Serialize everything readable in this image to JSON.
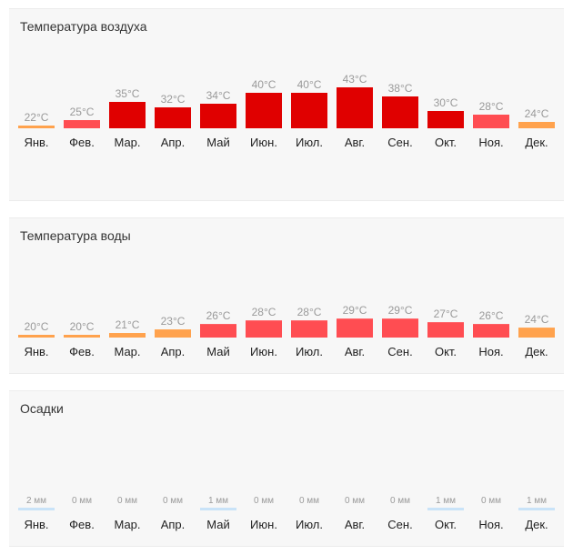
{
  "months": [
    "Янв.",
    "Фев.",
    "Мар.",
    "Апр.",
    "Май",
    "Июн.",
    "Июл.",
    "Авг.",
    "Сен.",
    "Окт.",
    "Ноя.",
    "Дек."
  ],
  "colors": {
    "orange": "#ffa24d",
    "red": "#ff4d52",
    "darkred": "#e00000",
    "precip": "#c9e3f8"
  },
  "chart_data": [
    {
      "type": "bar",
      "title": "Температура воздуха",
      "unit": "°C",
      "categories": [
        "Янв.",
        "Фев.",
        "Мар.",
        "Апр.",
        "Май",
        "Июн.",
        "Июл.",
        "Авг.",
        "Сен.",
        "Окт.",
        "Ноя.",
        "Дек."
      ],
      "values": [
        22,
        25,
        35,
        32,
        34,
        40,
        40,
        43,
        38,
        30,
        28,
        24
      ],
      "labels": [
        "22°C",
        "25°C",
        "35°C",
        "32°C",
        "34°C",
        "40°C",
        "40°C",
        "43°C",
        "38°C",
        "30°C",
        "28°C",
        "24°C"
      ],
      "colors": [
        "orange",
        "red",
        "darkred",
        "darkred",
        "darkred",
        "darkred",
        "darkred",
        "darkred",
        "darkred",
        "darkred",
        "red",
        "orange"
      ],
      "xlabel": "",
      "ylabel": ""
    },
    {
      "type": "bar",
      "title": "Температура воды",
      "unit": "°C",
      "categories": [
        "Янв.",
        "Фев.",
        "Мар.",
        "Апр.",
        "Май",
        "Июн.",
        "Июл.",
        "Авг.",
        "Сен.",
        "Окт.",
        "Ноя.",
        "Дек."
      ],
      "values": [
        20,
        20,
        21,
        23,
        26,
        28,
        28,
        29,
        29,
        27,
        26,
        24
      ],
      "labels": [
        "20°C",
        "20°C",
        "21°C",
        "23°C",
        "26°C",
        "28°C",
        "28°C",
        "29°C",
        "29°C",
        "27°C",
        "26°C",
        "24°C"
      ],
      "colors": [
        "orange",
        "orange",
        "orange",
        "orange",
        "red",
        "red",
        "red",
        "red",
        "red",
        "red",
        "red",
        "orange"
      ],
      "xlabel": "",
      "ylabel": ""
    },
    {
      "type": "bar",
      "title": "Осадки",
      "unit": "мм",
      "categories": [
        "Янв.",
        "Фев.",
        "Мар.",
        "Апр.",
        "Май",
        "Июн.",
        "Июл.",
        "Авг.",
        "Сен.",
        "Окт.",
        "Ноя.",
        "Дек."
      ],
      "values": [
        2,
        0,
        0,
        0,
        1,
        0,
        0,
        0,
        0,
        1,
        0,
        1
      ],
      "labels": [
        "2 мм",
        "0 мм",
        "0 мм",
        "0 мм",
        "1 мм",
        "0 мм",
        "0 мм",
        "0 мм",
        "0 мм",
        "1 мм",
        "0 мм",
        "1 мм"
      ],
      "colors": [
        "precip",
        "precip",
        "precip",
        "precip",
        "precip",
        "precip",
        "precip",
        "precip",
        "precip",
        "precip",
        "precip",
        "precip"
      ],
      "xlabel": "",
      "ylabel": ""
    }
  ]
}
